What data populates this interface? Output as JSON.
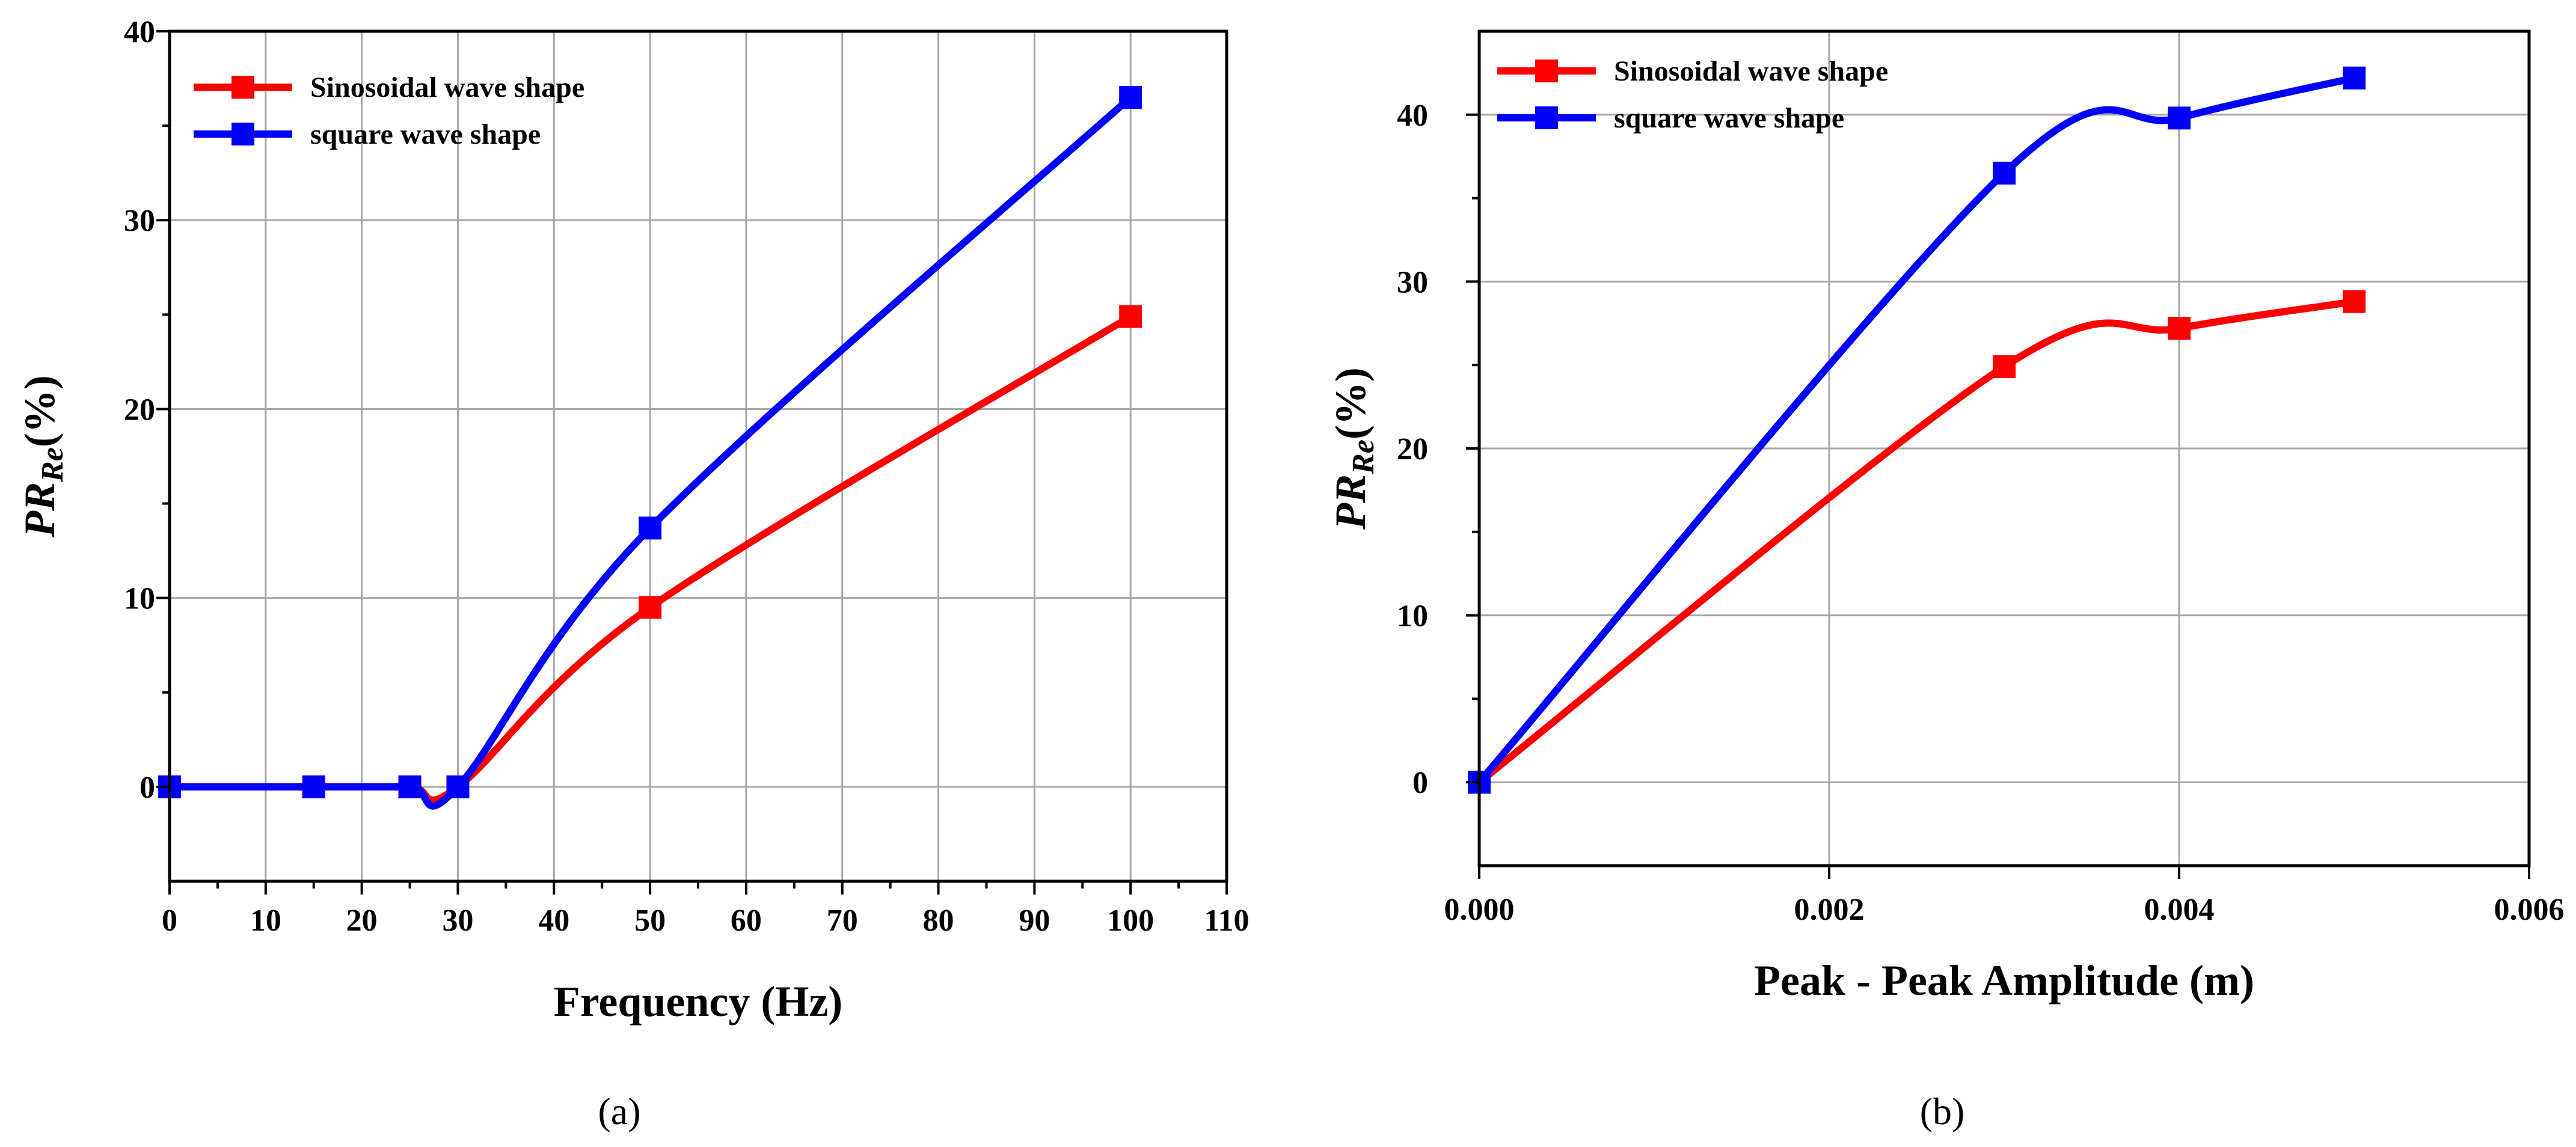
{
  "chart_data": [
    {
      "type": "line",
      "panel_label": "(a)",
      "xlabel": "Frequency (Hz)",
      "ylabel": {
        "main": "PR",
        "sub": "Re",
        "suffix": "(%)"
      },
      "xlim": [
        0,
        110
      ],
      "ylim": [
        -5,
        40
      ],
      "xticks": [
        0,
        10,
        20,
        30,
        40,
        50,
        60,
        70,
        80,
        90,
        100,
        110
      ],
      "yticks": [
        0,
        10,
        20,
        30,
        40
      ],
      "xtick_labels": [
        "0",
        "10",
        "20",
        "30",
        "40",
        "50",
        "60",
        "70",
        "80",
        "90",
        "100",
        "110"
      ],
      "ytick_labels": [
        "0",
        "10",
        "20",
        "30",
        "40"
      ],
      "grid": true,
      "legend_position": "top-left",
      "series": [
        {
          "name": "Sinosoidal wave shape",
          "color": "#ff0000",
          "x": [
            0,
            15,
            25,
            30,
            50,
            100
          ],
          "values": [
            0,
            0,
            0,
            0,
            9.5,
            24.9
          ]
        },
        {
          "name": "square wave shape",
          "color": "#0000ff",
          "x": [
            0,
            15,
            25,
            30,
            50,
            100
          ],
          "values": [
            0,
            0,
            0,
            0,
            13.7,
            36.5
          ]
        }
      ]
    },
    {
      "type": "line",
      "panel_label": "(b)",
      "xlabel": "Peak - Peak Amplitude (m)",
      "ylabel": {
        "main": "PR",
        "sub": "Re",
        "suffix": "(%)"
      },
      "xlim": [
        0,
        0.006
      ],
      "ylim": [
        -5,
        45
      ],
      "xticks": [
        0,
        0.002,
        0.004,
        0.006
      ],
      "yticks": [
        0,
        10,
        20,
        30,
        40
      ],
      "xtick_labels": [
        "0.000",
        "0.002",
        "0.004",
        "0.006"
      ],
      "ytick_labels": [
        "0",
        "10",
        "20",
        "30",
        "40"
      ],
      "grid": true,
      "legend_position": "top-left",
      "series": [
        {
          "name": "Sinosoidal wave shape",
          "color": "#ff0000",
          "x": [
            0,
            0.003,
            0.004,
            0.005
          ],
          "values": [
            0,
            24.9,
            27.2,
            28.8
          ]
        },
        {
          "name": "square wave shape",
          "color": "#0000ff",
          "x": [
            0,
            0.003,
            0.004,
            0.005
          ],
          "values": [
            0,
            36.5,
            39.8,
            42.2
          ]
        }
      ]
    }
  ]
}
